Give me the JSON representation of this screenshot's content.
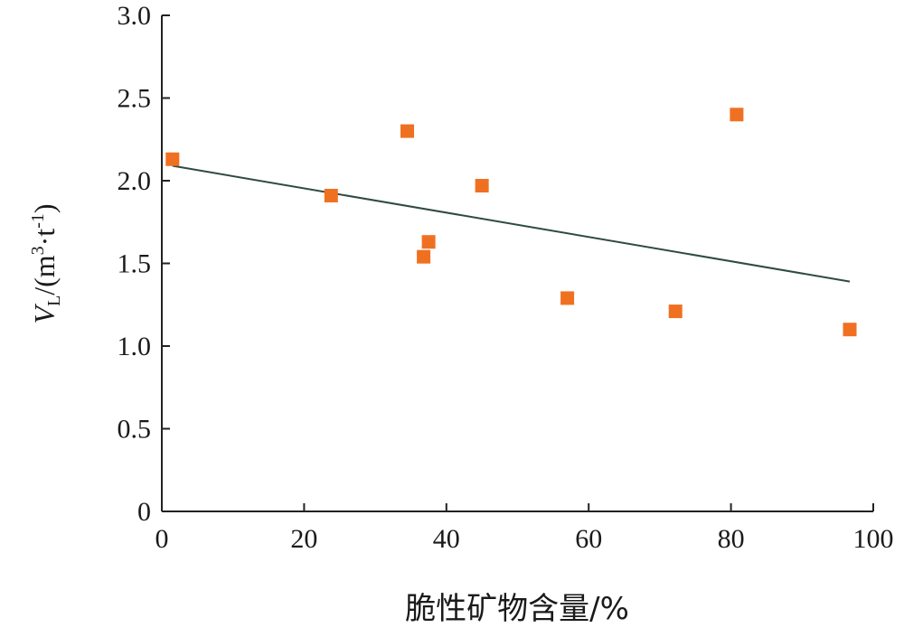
{
  "chart_data": {
    "type": "scatter",
    "xlabel": "脆性矿物含量/%",
    "ylabel": {
      "var": "V",
      "sub": "L",
      "unit_open": "/(m",
      "unit_sup1": "3",
      "unit_mid": "·t",
      "unit_sup2": "-1",
      "unit_close": ")"
    },
    "xlim": [
      0,
      100
    ],
    "ylim": [
      0,
      3.0
    ],
    "xticks": [
      0,
      20,
      40,
      60,
      80,
      100
    ],
    "xtick_labels": [
      "0",
      "20",
      "40",
      "60",
      "80",
      "100"
    ],
    "yticks": [
      0,
      0.5,
      1.0,
      1.5,
      2.0,
      2.5,
      3.0
    ],
    "ytick_labels": [
      "0",
      "0.5",
      "1.0",
      "1.5",
      "2.0",
      "2.5",
      "3.0"
    ],
    "grid": false,
    "marker_color": "#f07022",
    "line_color": "#2f4a44",
    "points": [
      {
        "x": 1.5,
        "y": 2.13
      },
      {
        "x": 23.8,
        "y": 1.91
      },
      {
        "x": 34.5,
        "y": 2.3
      },
      {
        "x": 36.8,
        "y": 1.54
      },
      {
        "x": 37.5,
        "y": 1.63
      },
      {
        "x": 45.0,
        "y": 1.97
      },
      {
        "x": 57.0,
        "y": 1.29
      },
      {
        "x": 72.2,
        "y": 1.21
      },
      {
        "x": 80.8,
        "y": 2.4
      },
      {
        "x": 96.7,
        "y": 1.1
      }
    ],
    "trendline": {
      "x": [
        1.5,
        96.7
      ],
      "y": [
        2.09,
        1.39
      ]
    }
  }
}
